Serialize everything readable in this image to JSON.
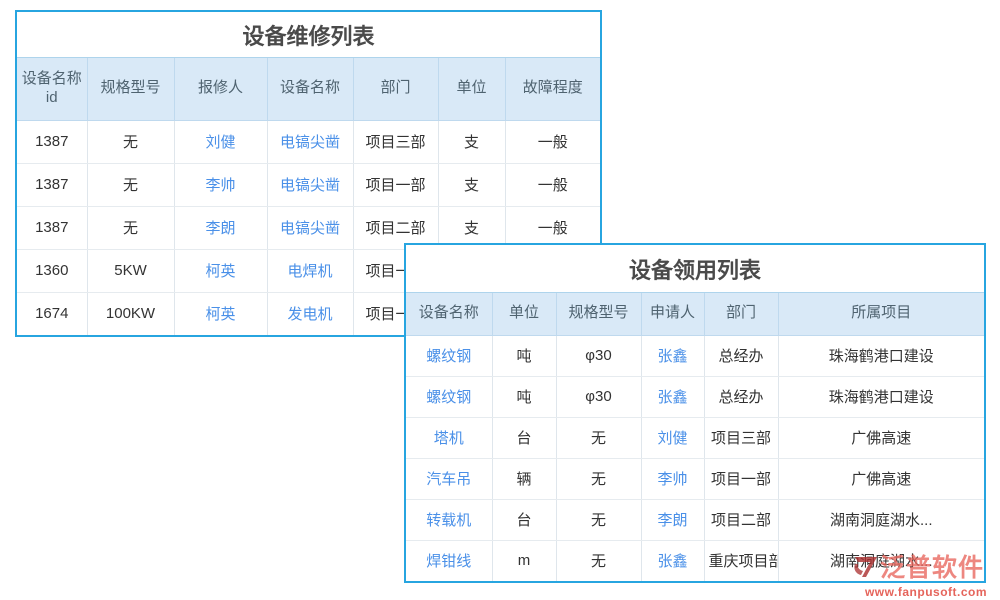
{
  "maintenance_table": {
    "title": "设备维修列表",
    "columns": [
      "设备名称id",
      "规格型号",
      "报修人",
      "设备名称",
      "部门",
      "单位",
      "故障程度"
    ],
    "rows": [
      [
        "1387",
        "无",
        "刘健",
        "电镐尖凿",
        "项目三部",
        "支",
        "一般"
      ],
      [
        "1387",
        "无",
        "李帅",
        "电镐尖凿",
        "项目一部",
        "支",
        "一般"
      ],
      [
        "1387",
        "无",
        "李朗",
        "电镐尖凿",
        "项目二部",
        "支",
        "一般"
      ],
      [
        "1360",
        "5KW",
        "柯英",
        "电焊机",
        "项目一部",
        "",
        ""
      ],
      [
        "1674",
        "100KW",
        "柯英",
        "发电机",
        "项目一部",
        "",
        ""
      ]
    ]
  },
  "requisition_table": {
    "title": "设备领用列表",
    "columns": [
      "设备名称",
      "单位",
      "规格型号",
      "申请人",
      "部门",
      "所属项目"
    ],
    "rows": [
      [
        "螺纹钢",
        "吨",
        "φ30",
        "张鑫",
        "总经办",
        "珠海鹤港口建设"
      ],
      [
        "螺纹钢",
        "吨",
        "φ30",
        "张鑫",
        "总经办",
        "珠海鹤港口建设"
      ],
      [
        "塔机",
        "台",
        "无",
        "刘健",
        "项目三部",
        "广佛高速"
      ],
      [
        "汽车吊",
        "辆",
        "无",
        "李帅",
        "项目一部",
        "广佛高速"
      ],
      [
        "转载机",
        "台",
        "无",
        "李朗",
        "项目二部",
        "湖南洞庭湖水..."
      ],
      [
        "焊钳线",
        "m",
        "无",
        "张鑫",
        "重庆项目部",
        "湖南洞庭湖水..."
      ]
    ]
  },
  "watermark": {
    "brand": "泛普软件",
    "url": "www.fanpusoft.com"
  },
  "colors": {
    "panel_border": "#27a5e0",
    "header_bg": "#d9e9f7",
    "header_text": "#4f6370",
    "body_text": "#333333",
    "link_blue": "#4a90e8",
    "watermark_red": "#e8655c"
  }
}
